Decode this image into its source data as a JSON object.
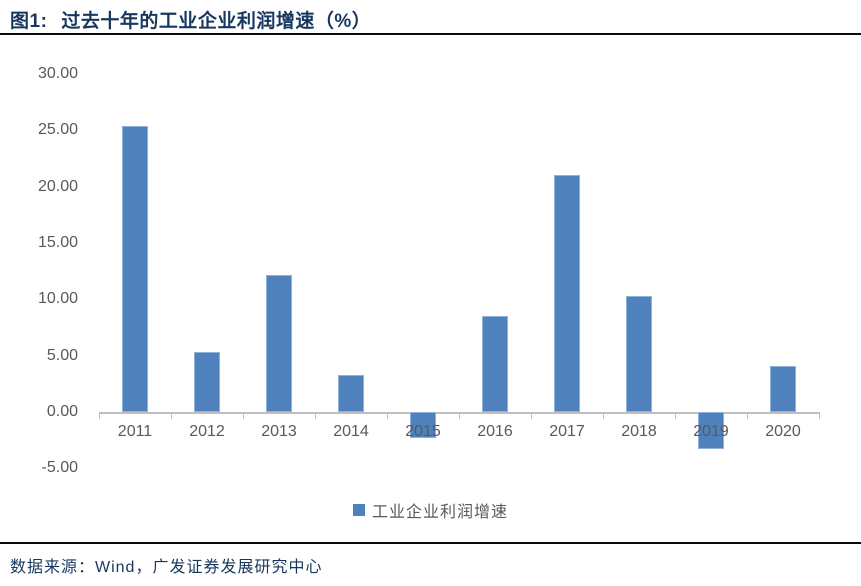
{
  "header": {
    "title_prefix": "图1:",
    "title_main": "过去十年的工业企业利润增速（%）"
  },
  "legend": {
    "label": "工业企业利润增速"
  },
  "footer": {
    "source_label": "数据来源：Wind，广发证券发展研究中心"
  },
  "chart_data": {
    "type": "bar",
    "title": "图1: 过去十年的工业企业利润增速（%）",
    "categories": [
      "2011",
      "2012",
      "2013",
      "2014",
      "2015",
      "2016",
      "2017",
      "2018",
      "2019",
      "2020"
    ],
    "series": [
      {
        "name": "工业企业利润增速",
        "values": [
          25.4,
          5.3,
          12.2,
          3.3,
          -2.3,
          8.5,
          21.0,
          10.3,
          -3.3,
          4.1
        ]
      }
    ],
    "xlabel": "",
    "ylabel": "",
    "ylim": [
      -5,
      30
    ],
    "ytick_labels": [
      "30.00",
      "25.00",
      "20.00",
      "15.00",
      "10.00",
      "5.00",
      "0.00",
      "-5.00"
    ],
    "grid": false,
    "legend_position": "bottom"
  },
  "colors": {
    "bar_fill": "#4F81BD",
    "bar_edge": "#8FB2DA",
    "axis_line": "#BFBFBF",
    "tick_text": "#595959",
    "title_text": "#17375E",
    "rule": "#0A0A14"
  }
}
